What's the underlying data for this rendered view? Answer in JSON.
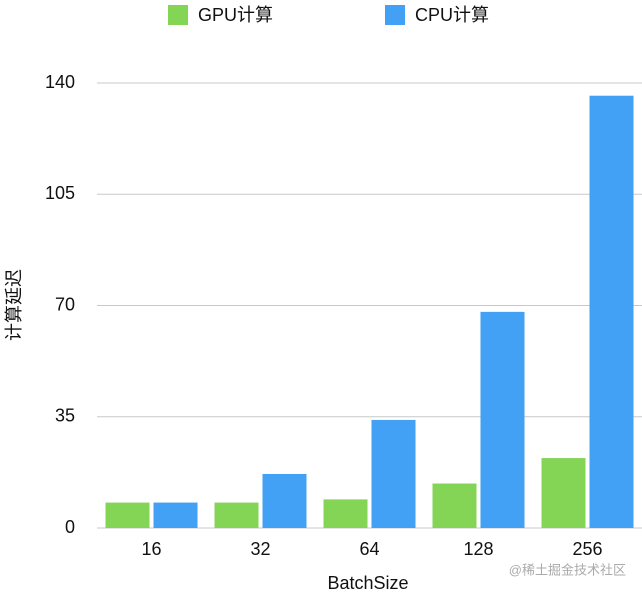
{
  "chart_data": {
    "type": "bar",
    "categories": [
      "16",
      "32",
      "64",
      "128",
      "256"
    ],
    "series": [
      {
        "name": "GPU计算",
        "color": "#84d455",
        "values": [
          8,
          8,
          9,
          14,
          22
        ]
      },
      {
        "name": "CPU计算",
        "color": "#42a1f5",
        "values": [
          8,
          17,
          34,
          68,
          136
        ]
      }
    ],
    "x_label": "BatchSize",
    "y_label": "计算延迟",
    "ylim": [
      0,
      140
    ],
    "yticks": [
      0,
      35,
      70,
      105,
      140
    ],
    "grid": true,
    "legend": "top",
    "watermark": "@稀土掘金技术社区"
  }
}
